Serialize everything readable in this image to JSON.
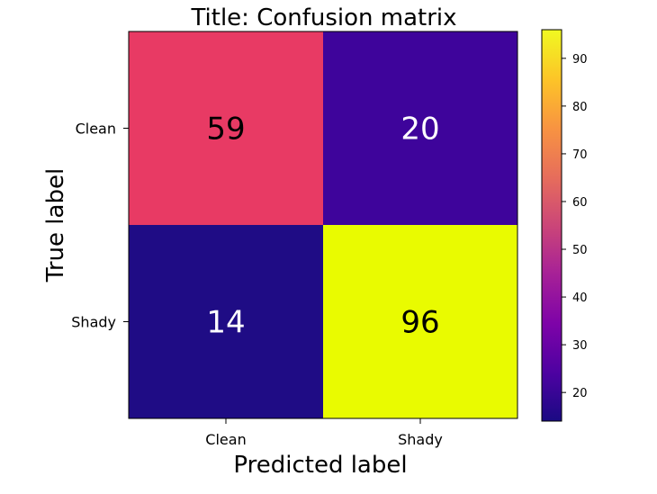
{
  "chart_data": {
    "type": "heatmap",
    "title": "Title: Confusion matrix",
    "xlabel": "Predicted label",
    "ylabel": "True label",
    "x_categories": [
      "Clean",
      "Shady"
    ],
    "y_categories": [
      "Clean",
      "Shady"
    ],
    "values": [
      [
        59,
        20
      ],
      [
        14,
        96
      ]
    ],
    "colormap": "plasma",
    "colorbar": {
      "range": [
        14,
        96
      ],
      "ticks": [
        20,
        30,
        40,
        50,
        60,
        70,
        80,
        90
      ]
    },
    "cell_colors": [
      [
        "#e83a64",
        "#3e049b"
      ],
      [
        "#1f0c85",
        "#e9fb00"
      ]
    ],
    "grid": false,
    "legend": "none"
  }
}
